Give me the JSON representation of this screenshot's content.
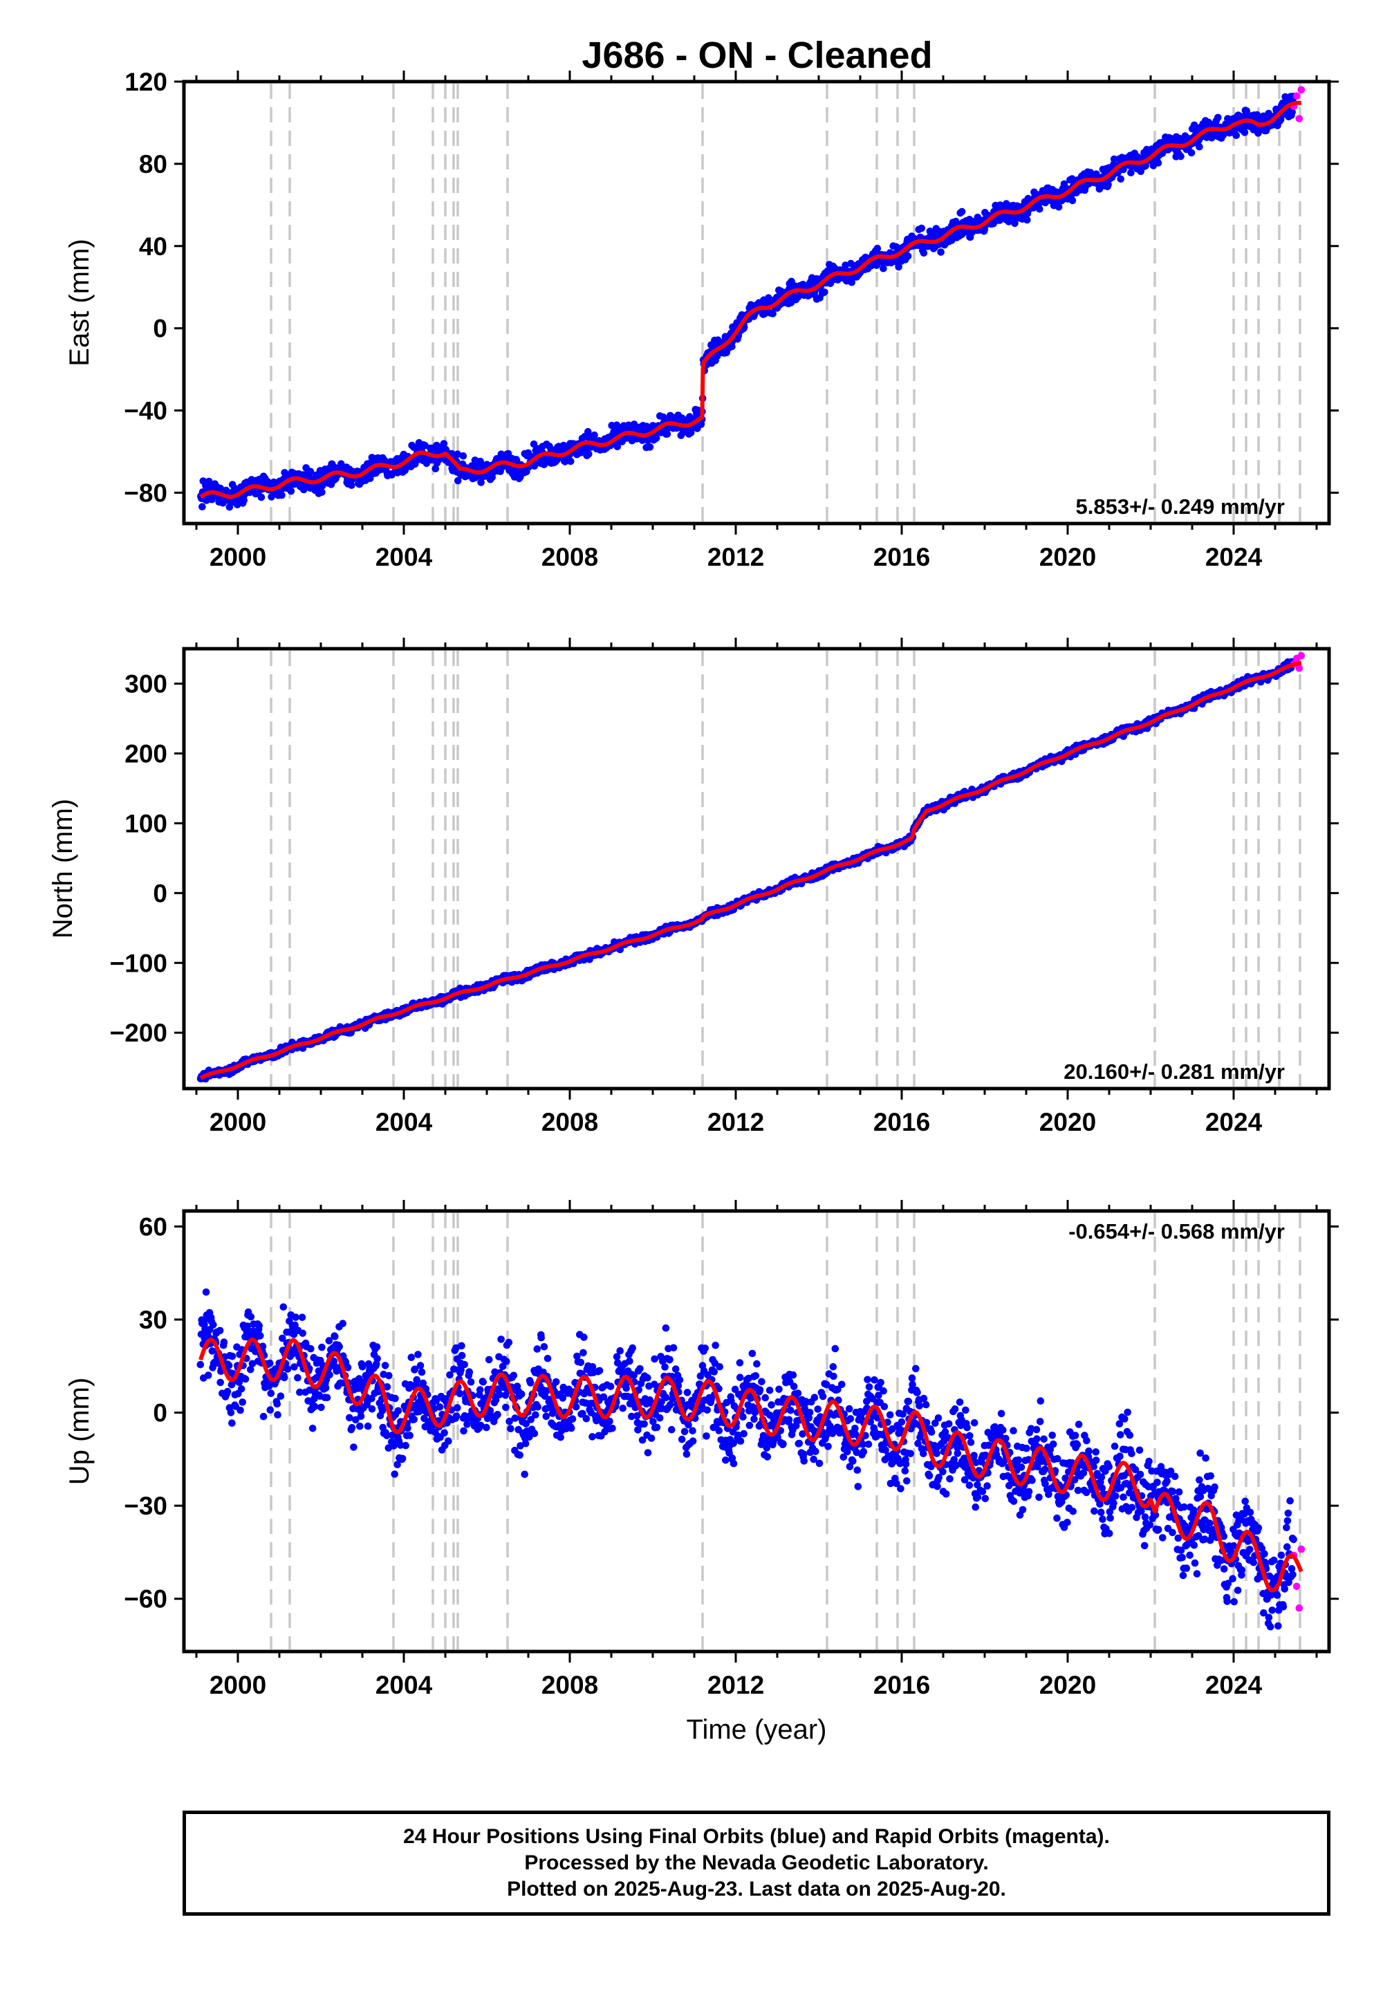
{
  "chart_data": {
    "title": "J686  - ON - Cleaned",
    "type": "scatter",
    "x_tick_labels": [
      "2000",
      "2004",
      "2008",
      "2012",
      "2016",
      "2020",
      "2024"
    ],
    "xlim": [
      1998.7,
      2026.3
    ],
    "xlabel": "Time (year)",
    "step_lines_year": [
      2000.8,
      2001.25,
      2003.75,
      2004.7,
      2005.0,
      2005.2,
      2005.3,
      2006.5,
      2011.2,
      2014.2,
      2015.4,
      2015.9,
      2016.3,
      2022.1,
      2024.0,
      2024.3,
      2024.6,
      2025.1,
      2025.6
    ],
    "data_span": [
      1999.1,
      2025.63
    ],
    "final_orbits_color": "#0000ff",
    "rapid_orbits_color": "#ff00ff",
    "model_color": "#ff0000",
    "step_line_color": "#c8c8c8",
    "panels": [
      {
        "component": "east",
        "ylabel": "East (mm)",
        "ylim": [
          -95,
          120
        ],
        "yticks": [
          120,
          80,
          40,
          0,
          -40,
          -80
        ],
        "y_tick_labels": [
          "120",
          "80",
          "40",
          "0",
          "−40",
          "−80"
        ],
        "rate": "5.853+/- 0.249 mm/yr",
        "rate_position": "bottom-right",
        "noise_mm": 2.6,
        "model_nodes": [
          [
            1999.1,
            -82
          ],
          [
            2000.0,
            -80
          ],
          [
            2001.25,
            -75
          ],
          [
            2003.0,
            -70
          ],
          [
            2003.8,
            -66
          ],
          [
            2004.4,
            -62
          ],
          [
            2005.0,
            -60
          ],
          [
            2005.35,
            -70
          ],
          [
            2007.0,
            -65
          ],
          [
            2008.0,
            -59
          ],
          [
            2011.2,
            -44
          ],
          [
            2011.21,
            -18
          ],
          [
            2012.3,
            5
          ],
          [
            2012.6,
            10
          ],
          [
            2015.0,
            30
          ],
          [
            2016.0,
            38
          ],
          [
            2018.0,
            52
          ],
          [
            2020.0,
            67
          ],
          [
            2022.0,
            84
          ],
          [
            2023.0,
            92
          ],
          [
            2024.0,
            100
          ],
          [
            2024.6,
            99
          ],
          [
            2025.63,
            110
          ]
        ],
        "seasonal_amp_mm": 1.6,
        "rapid_tail": [
          [
            2025.45,
            108
          ],
          [
            2025.52,
            113
          ],
          [
            2025.58,
            102
          ],
          [
            2025.63,
            116
          ]
        ]
      },
      {
        "component": "north",
        "ylabel": "North (mm)",
        "ylim": [
          -280,
          350
        ],
        "yticks": [
          300,
          200,
          100,
          0,
          -100,
          -200
        ],
        "y_tick_labels": [
          "300",
          "200",
          "100",
          "0",
          "−100",
          "−200"
        ],
        "rate": "20.160+/- 0.281 mm/yr",
        "rate_position": "bottom-right",
        "noise_mm": 2.8,
        "model_nodes": [
          [
            1999.1,
            -265
          ],
          [
            2004.0,
            -168
          ],
          [
            2008.0,
            -97
          ],
          [
            2011.2,
            -38
          ],
          [
            2011.21,
            -34
          ],
          [
            2016.25,
            78
          ],
          [
            2016.3,
            90
          ],
          [
            2016.6,
            118
          ],
          [
            2018.0,
            150
          ],
          [
            2020.0,
            200
          ],
          [
            2022.0,
            245
          ],
          [
            2024.0,
            295
          ],
          [
            2025.63,
            330
          ]
        ],
        "seasonal_amp_mm": 1.5,
        "rapid_tail": [
          [
            2025.45,
            328
          ],
          [
            2025.52,
            336
          ],
          [
            2025.58,
            322
          ],
          [
            2025.63,
            340
          ]
        ]
      },
      {
        "component": "up",
        "ylabel": "Up (mm)",
        "ylim": [
          -77,
          65
        ],
        "yticks": [
          60,
          30,
          0,
          -30,
          -60
        ],
        "y_tick_labels": [
          "60",
          "30",
          "0",
          "−30",
          "−60"
        ],
        "rate": "-0.654+/- 0.568 mm/yr",
        "rate_position": "top-right",
        "noise_mm": 6.5,
        "model_nodes": [
          [
            1999.1,
            17
          ],
          [
            2001.3,
            17
          ],
          [
            2002.3,
            13
          ],
          [
            2003.2,
            7
          ],
          [
            2003.75,
            0
          ],
          [
            2005.2,
            3
          ],
          [
            2006.0,
            6
          ],
          [
            2008.0,
            5
          ],
          [
            2010.0,
            5
          ],
          [
            2011.2,
            4
          ],
          [
            2013.0,
            -1
          ],
          [
            2016.3,
            -6
          ],
          [
            2017.0,
            -12
          ],
          [
            2019.0,
            -17
          ],
          [
            2021.0,
            -22
          ],
          [
            2022.0,
            -24
          ],
          [
            2022.1,
            -32
          ],
          [
            2023.5,
            -36
          ],
          [
            2024.0,
            -43
          ],
          [
            2024.7,
            -47
          ],
          [
            2025.1,
            -55
          ],
          [
            2025.63,
            -50
          ]
        ],
        "seasonal_amp_mm": 6.5,
        "rapid_tail": [
          [
            2025.45,
            -46
          ],
          [
            2025.52,
            -56
          ],
          [
            2025.58,
            -63
          ],
          [
            2025.63,
            -44
          ]
        ]
      }
    ]
  },
  "caption": {
    "line1": "24 Hour Positions Using Final Orbits (blue) and Rapid Orbits (magenta).",
    "line2": "Processed by the Nevada Geodetic Laboratory.",
    "line3": "Plotted on 2025-Aug-23. Last data on 2025-Aug-20."
  }
}
